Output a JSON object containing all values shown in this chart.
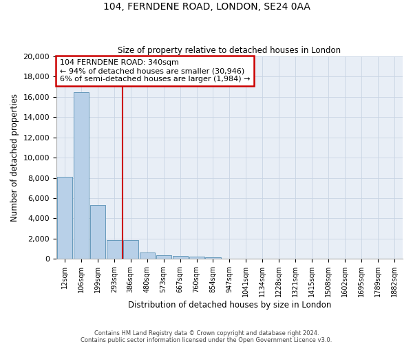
{
  "title1": "104, FERNDENE ROAD, LONDON, SE24 0AA",
  "title2": "Size of property relative to detached houses in London",
  "xlabel": "Distribution of detached houses by size in London",
  "ylabel": "Number of detached properties",
  "categories": [
    "12sqm",
    "106sqm",
    "199sqm",
    "293sqm",
    "386sqm",
    "480sqm",
    "573sqm",
    "667sqm",
    "760sqm",
    "854sqm",
    "947sqm",
    "1041sqm",
    "1134sqm",
    "1228sqm",
    "1321sqm",
    "1415sqm",
    "1508sqm",
    "1602sqm",
    "1695sqm",
    "1789sqm",
    "1882sqm"
  ],
  "values": [
    8100,
    16500,
    5300,
    1850,
    1850,
    650,
    330,
    260,
    200,
    170,
    0,
    0,
    0,
    0,
    0,
    0,
    0,
    0,
    0,
    0,
    0
  ],
  "bar_color": "#b8d0e8",
  "bar_edge_color": "#6699bb",
  "vline_color": "#cc0000",
  "annotation_text": "104 FERNDENE ROAD: 340sqm\n← 94% of detached houses are smaller (30,946)\n6% of semi-detached houses are larger (1,984) →",
  "annotation_box_color": "#cc0000",
  "ylim": [
    0,
    20000
  ],
  "yticks": [
    0,
    2000,
    4000,
    6000,
    8000,
    10000,
    12000,
    14000,
    16000,
    18000,
    20000
  ],
  "grid_color": "#c8d4e4",
  "bg_color": "#e8eef6",
  "footnote1": "Contains HM Land Registry data © Crown copyright and database right 2024.",
  "footnote2": "Contains public sector information licensed under the Open Government Licence v3.0."
}
